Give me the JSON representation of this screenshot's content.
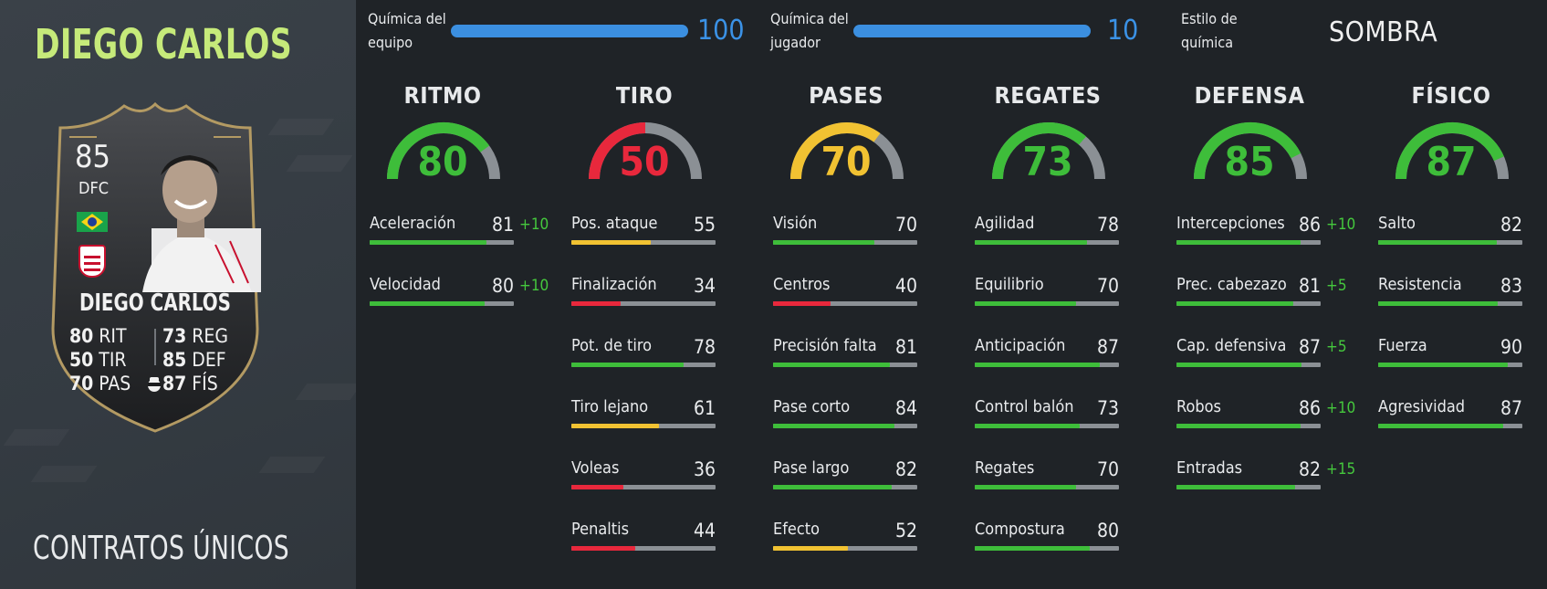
{
  "player": {
    "name": "DIEGO CARLOS",
    "promo": "CONTRATOS ÚNICOS",
    "card": {
      "rating": "85",
      "position": "DFC",
      "name": "DIEGO CARLOS",
      "stats": [
        {
          "value": "80",
          "abbr": "RIT"
        },
        {
          "value": "50",
          "abbr": "TIR"
        },
        {
          "value": "70",
          "abbr": "PAS"
        },
        {
          "value": "73",
          "abbr": "REG"
        },
        {
          "value": "85",
          "abbr": "DEF"
        },
        {
          "value": "87",
          "abbr": "FÍS"
        }
      ]
    }
  },
  "chemistry": {
    "team_label_1": "Química del",
    "team_label_2": "equipo",
    "team_value": "100",
    "player_label_1": "Química del",
    "player_label_2": "jugador",
    "player_value": "10",
    "style_label_1": "Estilo de",
    "style_label_2": "química",
    "style_value": "SOMBRA"
  },
  "colors": {
    "green": "#3ebd3a",
    "yellow": "#f1c232",
    "red": "#e8283c",
    "grey": "#8b9095",
    "blue": "#3b92e6",
    "name_green": "#c6ea7a"
  },
  "attributes": [
    {
      "title": "RITMO",
      "value": "80",
      "stats": [
        {
          "label": "Aceleración",
          "value": "81",
          "boost": "+10"
        },
        {
          "label": "Velocidad",
          "value": "80",
          "boost": "+10"
        }
      ]
    },
    {
      "title": "TIRO",
      "value": "50",
      "stats": [
        {
          "label": "Pos. ataque",
          "value": "55",
          "boost": ""
        },
        {
          "label": "Finalización",
          "value": "34",
          "boost": ""
        },
        {
          "label": "Pot. de tiro",
          "value": "78",
          "boost": ""
        },
        {
          "label": "Tiro lejano",
          "value": "61",
          "boost": ""
        },
        {
          "label": "Voleas",
          "value": "36",
          "boost": ""
        },
        {
          "label": "Penaltis",
          "value": "44",
          "boost": ""
        }
      ]
    },
    {
      "title": "PASES",
      "value": "70",
      "stats": [
        {
          "label": "Visión",
          "value": "70",
          "boost": ""
        },
        {
          "label": "Centros",
          "value": "40",
          "boost": ""
        },
        {
          "label": "Precisión falta",
          "value": "81",
          "boost": ""
        },
        {
          "label": "Pase corto",
          "value": "84",
          "boost": ""
        },
        {
          "label": "Pase largo",
          "value": "82",
          "boost": ""
        },
        {
          "label": "Efecto",
          "value": "52",
          "boost": ""
        }
      ]
    },
    {
      "title": "REGATES",
      "value": "73",
      "stats": [
        {
          "label": "Agilidad",
          "value": "78",
          "boost": ""
        },
        {
          "label": "Equilibrio",
          "value": "70",
          "boost": ""
        },
        {
          "label": "Anticipación",
          "value": "87",
          "boost": ""
        },
        {
          "label": "Control balón",
          "value": "73",
          "boost": ""
        },
        {
          "label": "Regates",
          "value": "70",
          "boost": ""
        },
        {
          "label": "Compostura",
          "value": "80",
          "boost": ""
        }
      ]
    },
    {
      "title": "DEFENSA",
      "value": "85",
      "stats": [
        {
          "label": "Intercepciones",
          "value": "86",
          "boost": "+10"
        },
        {
          "label": "Prec. cabezazo",
          "value": "81",
          "boost": "+5"
        },
        {
          "label": "Cap. defensiva",
          "value": "87",
          "boost": "+5"
        },
        {
          "label": "Robos",
          "value": "86",
          "boost": "+10"
        },
        {
          "label": "Entradas",
          "value": "82",
          "boost": "+15"
        }
      ]
    },
    {
      "title": "FÍSICO",
      "value": "87",
      "stats": [
        {
          "label": "Salto",
          "value": "82",
          "boost": ""
        },
        {
          "label": "Resistencia",
          "value": "83",
          "boost": ""
        },
        {
          "label": "Fuerza",
          "value": "90",
          "boost": ""
        },
        {
          "label": "Agresividad",
          "value": "87",
          "boost": ""
        }
      ]
    }
  ]
}
